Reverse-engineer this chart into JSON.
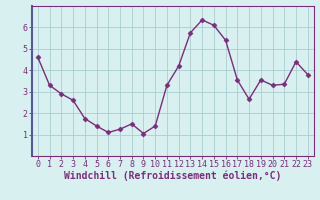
{
  "x": [
    0,
    1,
    2,
    3,
    4,
    5,
    6,
    7,
    8,
    9,
    10,
    11,
    12,
    13,
    14,
    15,
    16,
    17,
    18,
    19,
    20,
    21,
    22,
    23
  ],
  "y": [
    4.6,
    3.3,
    2.9,
    2.6,
    1.75,
    1.4,
    1.1,
    1.25,
    1.5,
    1.05,
    1.4,
    3.3,
    4.2,
    5.75,
    6.35,
    6.1,
    5.4,
    3.55,
    2.65,
    3.55,
    3.3,
    3.35,
    4.4,
    3.8
  ],
  "line_color": "#7B2D7B",
  "marker": "D",
  "markersize": 2.5,
  "linewidth": 1.0,
  "background_color": "#d8f0f0",
  "grid_color": "#aacece",
  "xlabel": "Windchill (Refroidissement éolien,°C)",
  "xlabel_color": "#7B2D7B",
  "xlim": [
    -0.5,
    23.5
  ],
  "ylim": [
    0,
    7
  ],
  "yticks": [
    1,
    2,
    3,
    4,
    5,
    6
  ],
  "xticks": [
    0,
    1,
    2,
    3,
    4,
    5,
    6,
    7,
    8,
    9,
    10,
    11,
    12,
    13,
    14,
    15,
    16,
    17,
    18,
    19,
    20,
    21,
    22,
    23
  ],
  "tick_color": "#7B2D7B",
  "tick_labelsize": 6.0,
  "xlabel_fontsize": 7.0,
  "spine_color": "#7B2D7B",
  "left_spine_color": "#5555aa"
}
